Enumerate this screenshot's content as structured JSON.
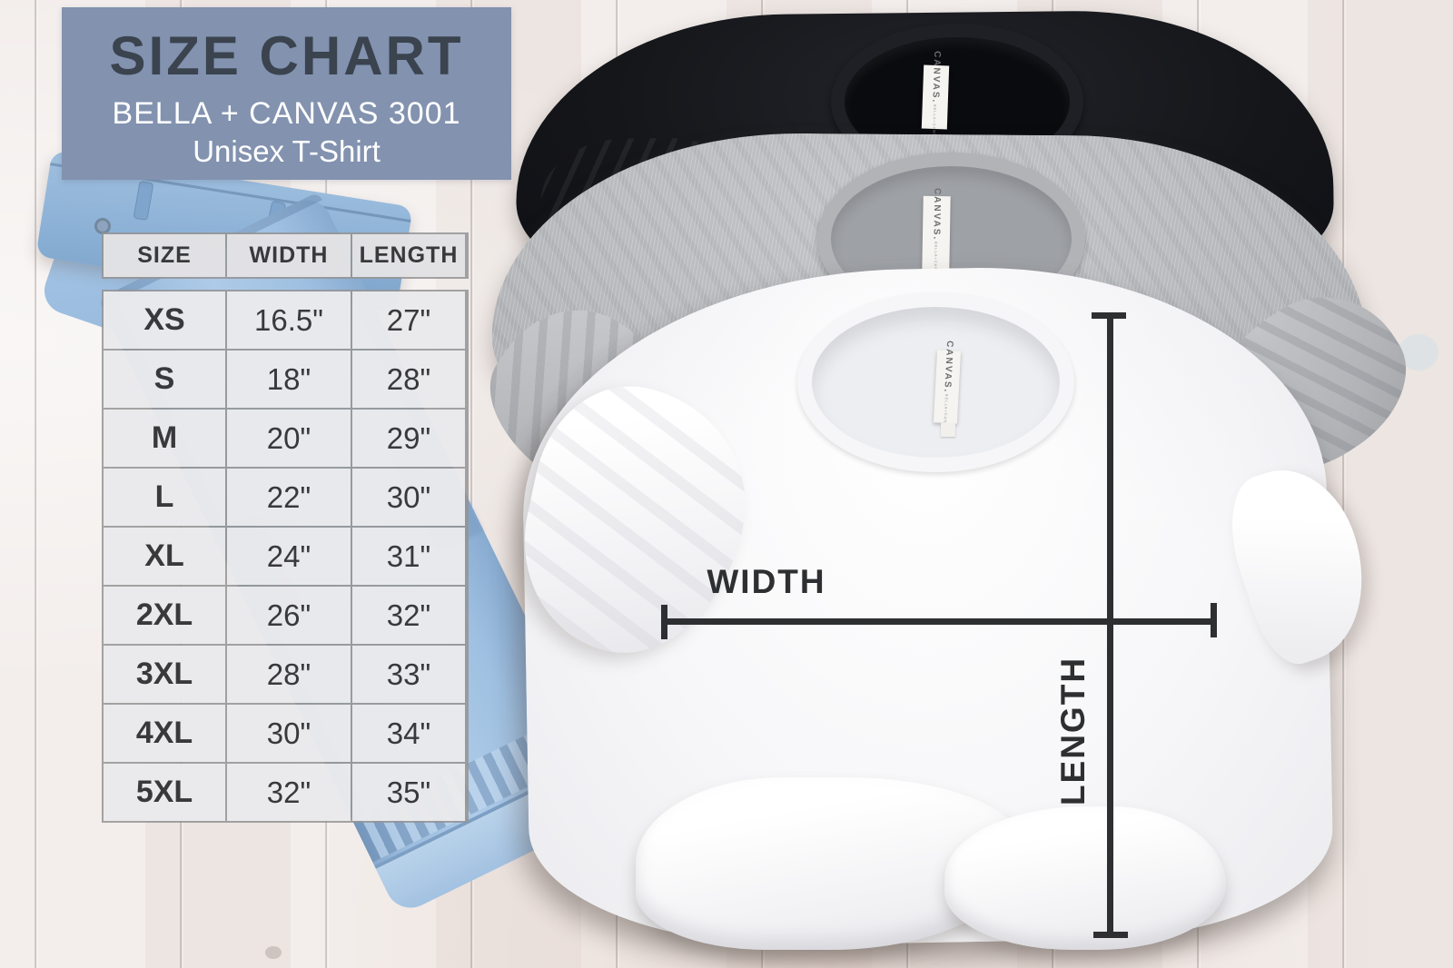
{
  "header_box": {
    "title": "SIZE CHART",
    "product_line": "BELLA + CANVAS 3001",
    "product_type": "Unisex T-Shirt"
  },
  "size_table": {
    "columns": [
      "SIZE",
      "WIDTH",
      "LENGTH"
    ],
    "rows": [
      {
        "size": "XS",
        "width": "16.5\"",
        "length": "27\""
      },
      {
        "size": "S",
        "width": "18\"",
        "length": "28\""
      },
      {
        "size": "M",
        "width": "20\"",
        "length": "29\""
      },
      {
        "size": "L",
        "width": "22\"",
        "length": "30\""
      },
      {
        "size": "XL",
        "width": "24\"",
        "length": "31\""
      },
      {
        "size": "2XL",
        "width": "26\"",
        "length": "32\""
      },
      {
        "size": "3XL",
        "width": "28\"",
        "length": "33\""
      },
      {
        "size": "4XL",
        "width": "30\"",
        "length": "34\""
      },
      {
        "size": "5XL",
        "width": "32\"",
        "length": "35\""
      }
    ]
  },
  "measurements": {
    "width_label": "WIDTH",
    "length_label": "LENGTH"
  },
  "shirt_tag": {
    "brand": "CANVAS.",
    "sub_brand": "BELLA+CANVAS"
  },
  "photo": {
    "shirts": [
      "black",
      "heather-gray",
      "white"
    ],
    "props": [
      "light-wash-jeans",
      "white-wood-planks"
    ]
  },
  "chart_data": {
    "type": "table",
    "title": "SIZE CHART",
    "subtitle": "BELLA + CANVAS 3001 Unisex T-Shirt",
    "columns": [
      "SIZE",
      "WIDTH",
      "LENGTH"
    ],
    "units": "inches",
    "rows": [
      [
        "XS",
        "16.5\"",
        "27\""
      ],
      [
        "S",
        "18\"",
        "28\""
      ],
      [
        "M",
        "20\"",
        "29\""
      ],
      [
        "L",
        "22\"",
        "30\""
      ],
      [
        "XL",
        "24\"",
        "31\""
      ],
      [
        "2XL",
        "26\"",
        "32\""
      ],
      [
        "3XL",
        "28\"",
        "33\""
      ],
      [
        "4XL",
        "30\"",
        "34\""
      ],
      [
        "5XL",
        "32\"",
        "35\""
      ]
    ]
  },
  "colors": {
    "header-box-bg": "#8292af",
    "header-title": "#3a434e",
    "table-header-bg": "rgba(231,231,234,0.92)",
    "table-cell-bg": "rgba(250,250,252,0.82)",
    "table-text": "#39393b",
    "measure-line": "#2e2f31",
    "shirt-black": "#15161a",
    "shirt-gray": "#b6b8bb",
    "shirt-white": "#fbfbfc",
    "denim": "#a3c2e2",
    "wood": "#f1ebe8"
  }
}
